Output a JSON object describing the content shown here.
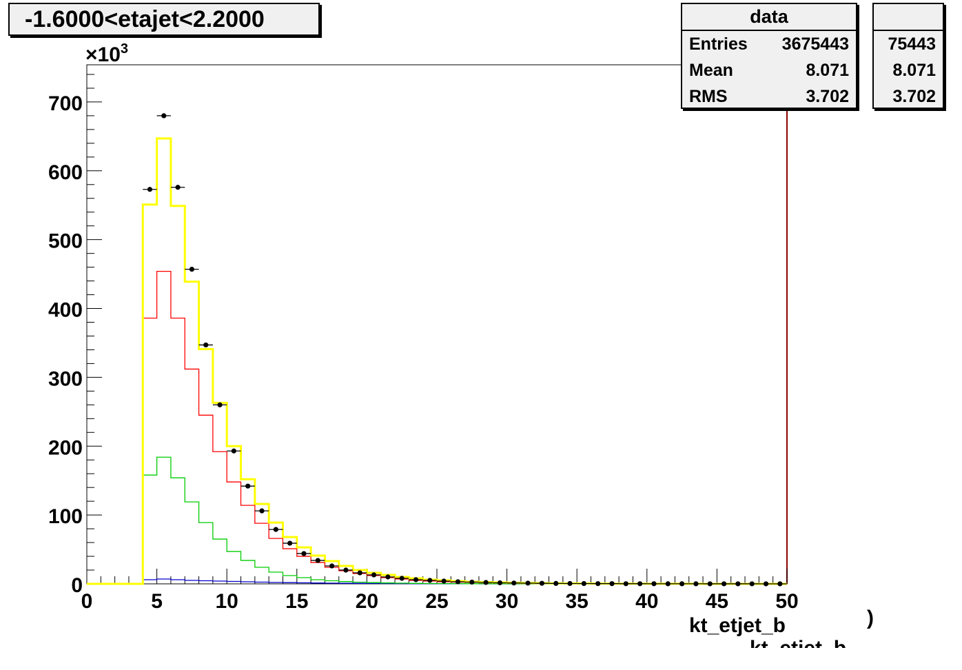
{
  "title": "-1.6000<etajet<2.2000",
  "stats": {
    "name": "data",
    "entries_label": "Entries",
    "entries": "3675443",
    "mean_label": "Mean",
    "mean": "8.071",
    "rms_label": "RMS",
    "rms": "3.702"
  },
  "ghost_stats": {
    "entries": "75443",
    "mean": "8.071",
    "rms": "3.702"
  },
  "ghost_xlabel": "kt_etjet_b",
  "ghost_paren": ")",
  "chart_data": {
    "type": "line",
    "title": "-1.6000<etajet<2.2000",
    "xlabel": "kt_etjet_b",
    "ylabel": "",
    "y_multiplier": "×10",
    "y_multiplier_exp": "3",
    "xlim": [
      0,
      50
    ],
    "ylim": [
      0,
      700
    ],
    "x_ticks": [
      0,
      5,
      10,
      15,
      20,
      25,
      30,
      35,
      40,
      45,
      50
    ],
    "y_ticks": [
      0,
      100,
      200,
      300,
      400,
      500,
      600,
      700
    ],
    "bin_width": 1,
    "bin_low_edges": [
      0,
      1,
      2,
      3,
      4,
      5,
      6,
      7,
      8,
      9,
      10,
      11,
      12,
      13,
      14,
      15,
      16,
      17,
      18,
      19,
      20,
      21,
      22,
      23,
      24,
      25,
      26,
      27,
      28,
      29,
      30,
      31,
      32,
      33,
      34,
      35,
      36,
      37,
      38,
      39,
      40,
      41,
      42,
      43,
      44,
      45,
      46,
      47,
      48,
      49
    ],
    "series": [
      {
        "kind": "points",
        "color": "#000000",
        "values": [
          0,
          0,
          0,
          0,
          573,
          680,
          576,
          457,
          347,
          260,
          193,
          142,
          106,
          79,
          59,
          44,
          34,
          26,
          20,
          16,
          13,
          10,
          8,
          6,
          5,
          4,
          3,
          2.5,
          2,
          1.5,
          1.2,
          1,
          0.8,
          0.6,
          0.5,
          0.4,
          0.3,
          0.3,
          0.2,
          0.2,
          0.15,
          0.1,
          0.1,
          0.1,
          0.08,
          0.06,
          0.05,
          0.04,
          0.03,
          0.02
        ]
      },
      {
        "kind": "step",
        "color": "#ffff00",
        "values": [
          0,
          0,
          0,
          0,
          551,
          647,
          549,
          439,
          341,
          263,
          200,
          152,
          116,
          89,
          68,
          53,
          41,
          33,
          26,
          20,
          16,
          13,
          10,
          8,
          6,
          5,
          4,
          3,
          2.5,
          2,
          1.5,
          1.2,
          1,
          0.8,
          0.6,
          0.5,
          0.4,
          0.3,
          0.25,
          0.2,
          0.15,
          0.12,
          0.1,
          0.08,
          0.06,
          0.05,
          0.04,
          0.03,
          0.02,
          0.01
        ]
      },
      {
        "kind": "step",
        "color": "#ff0000",
        "values": [
          0,
          0,
          0,
          0,
          386,
          454,
          386,
          312,
          245,
          192,
          148,
          114,
          88,
          66,
          51,
          40,
          31,
          24,
          19,
          15,
          12,
          9,
          7,
          5,
          4,
          3,
          2.5,
          2,
          1.5,
          1.2,
          1,
          0.8,
          0.6,
          0.5,
          0.4,
          0.3,
          0.25,
          0.2,
          0.15,
          0.1,
          0.08,
          0.06,
          0.05,
          0.04,
          0.03,
          0.02,
          0.02,
          0.01,
          0.01,
          0.01
        ]
      },
      {
        "kind": "step",
        "color": "#00cc00",
        "values": [
          0,
          0,
          0,
          0,
          158,
          184,
          154,
          119,
          89,
          65,
          47,
          34,
          24,
          17,
          12,
          9,
          6,
          4.5,
          3.3,
          2.4,
          1.8,
          1.3,
          1,
          0.7,
          0.5,
          0.4,
          0.3,
          0.2,
          0.15,
          0.1,
          0.08,
          0.06,
          0.05,
          0.04,
          0.03,
          0.02,
          0.02,
          0.01,
          0.01,
          0.01,
          0,
          0,
          0,
          0,
          0,
          0,
          0,
          0,
          0,
          0
        ]
      },
      {
        "kind": "step",
        "color": "#0000cc",
        "values": [
          0,
          0,
          0,
          0,
          6,
          7,
          6,
          5,
          4.5,
          4,
          3.5,
          3,
          2.5,
          2,
          1.8,
          1.5,
          1.2,
          1,
          0.8,
          0.7,
          0.6,
          0.5,
          0.4,
          0.3,
          0.25,
          0.2,
          0.15,
          0.1,
          0.08,
          0.06,
          0.05,
          0.04,
          0.03,
          0.02,
          0.02,
          0.01,
          0.01,
          0,
          0,
          0,
          0,
          0,
          0,
          0,
          0,
          0,
          0,
          0,
          0,
          0
        ]
      }
    ]
  }
}
